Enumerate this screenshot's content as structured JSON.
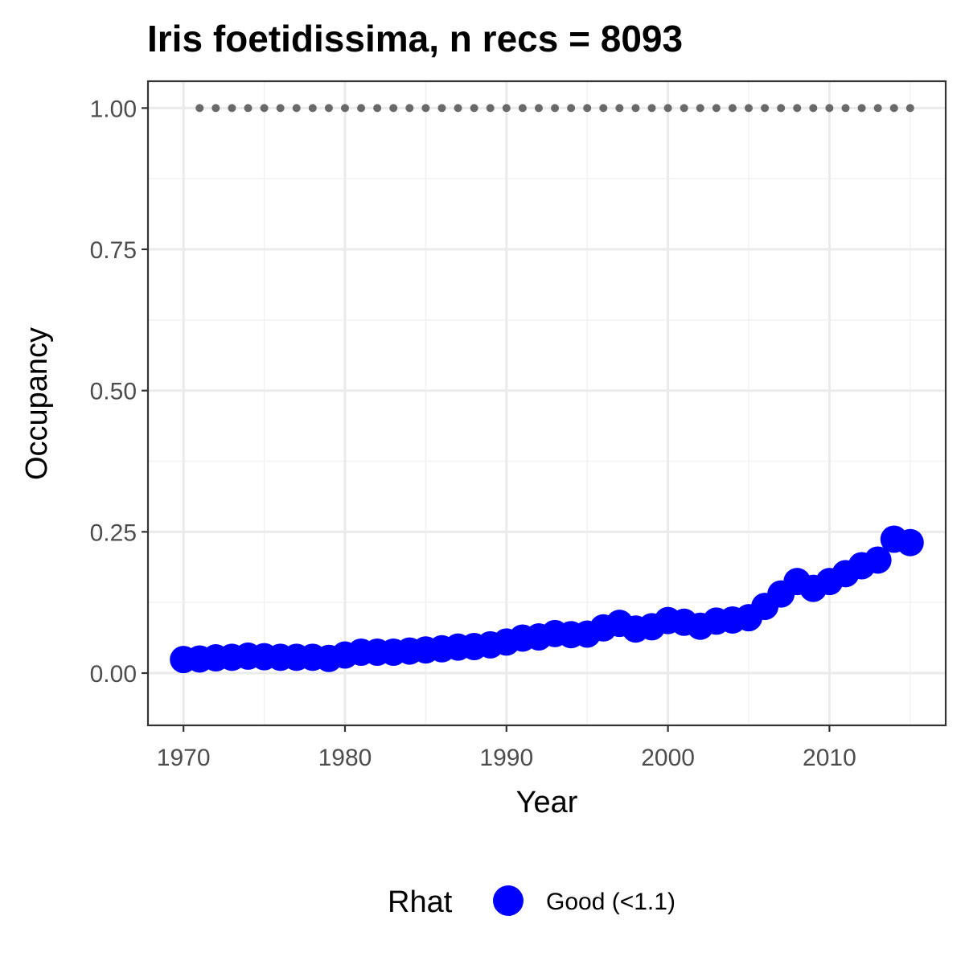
{
  "chart_data": {
    "type": "scatter",
    "title": "Iris foetidissima, n recs = 8093",
    "xlabel": "Year",
    "ylabel": "Occupancy",
    "xlim": [
      1967.8,
      2017.2
    ],
    "ylim": [
      -0.0925,
      1.0475
    ],
    "x_ticks": [
      1970,
      1980,
      1990,
      2000,
      2010
    ],
    "x_tick_labels": [
      "1970",
      "1980",
      "1990",
      "2000",
      "2010"
    ],
    "y_ticks": [
      0.0,
      0.25,
      0.5,
      0.75,
      1.0
    ],
    "y_tick_labels": [
      "0.00",
      "0.25",
      "0.50",
      "0.75",
      "1.00"
    ],
    "grid": true,
    "legend": {
      "position": "bottom",
      "title": "Rhat",
      "items": [
        {
          "label": "Good (<1.1)",
          "color": "#0000ff"
        }
      ]
    },
    "series": [
      {
        "name": "Good (<1.1)",
        "color": "#0000ff",
        "x": [
          1970,
          1971,
          1972,
          1973,
          1974,
          1975,
          1976,
          1977,
          1978,
          1979,
          1980,
          1981,
          1982,
          1983,
          1984,
          1985,
          1986,
          1987,
          1988,
          1989,
          1990,
          1991,
          1992,
          1993,
          1994,
          1995,
          1996,
          1997,
          1998,
          1999,
          2000,
          2001,
          2002,
          2003,
          2004,
          2005,
          2006,
          2007,
          2008,
          2009,
          2010,
          2011,
          2012,
          2013,
          2014,
          2015
        ],
        "y": [
          0.024,
          0.025,
          0.027,
          0.028,
          0.03,
          0.029,
          0.028,
          0.028,
          0.028,
          0.026,
          0.032,
          0.037,
          0.037,
          0.037,
          0.039,
          0.041,
          0.043,
          0.046,
          0.047,
          0.05,
          0.055,
          0.062,
          0.064,
          0.07,
          0.068,
          0.069,
          0.08,
          0.088,
          0.078,
          0.082,
          0.093,
          0.09,
          0.083,
          0.092,
          0.094,
          0.098,
          0.118,
          0.14,
          0.162,
          0.15,
          0.162,
          0.176,
          0.19,
          0.2,
          0.237,
          0.231
        ]
      }
    ],
    "reference_points": {
      "color": "#696969",
      "x": [
        1971,
        1972,
        1973,
        1974,
        1975,
        1976,
        1977,
        1978,
        1979,
        1980,
        1981,
        1982,
        1983,
        1984,
        1985,
        1986,
        1987,
        1988,
        1989,
        1990,
        1991,
        1992,
        1993,
        1994,
        1995,
        1996,
        1997,
        1998,
        1999,
        2000,
        2001,
        2002,
        2003,
        2004,
        2005,
        2006,
        2007,
        2008,
        2009,
        2010,
        2011,
        2012,
        2013,
        2014,
        2015
      ],
      "y": 1.0
    }
  }
}
